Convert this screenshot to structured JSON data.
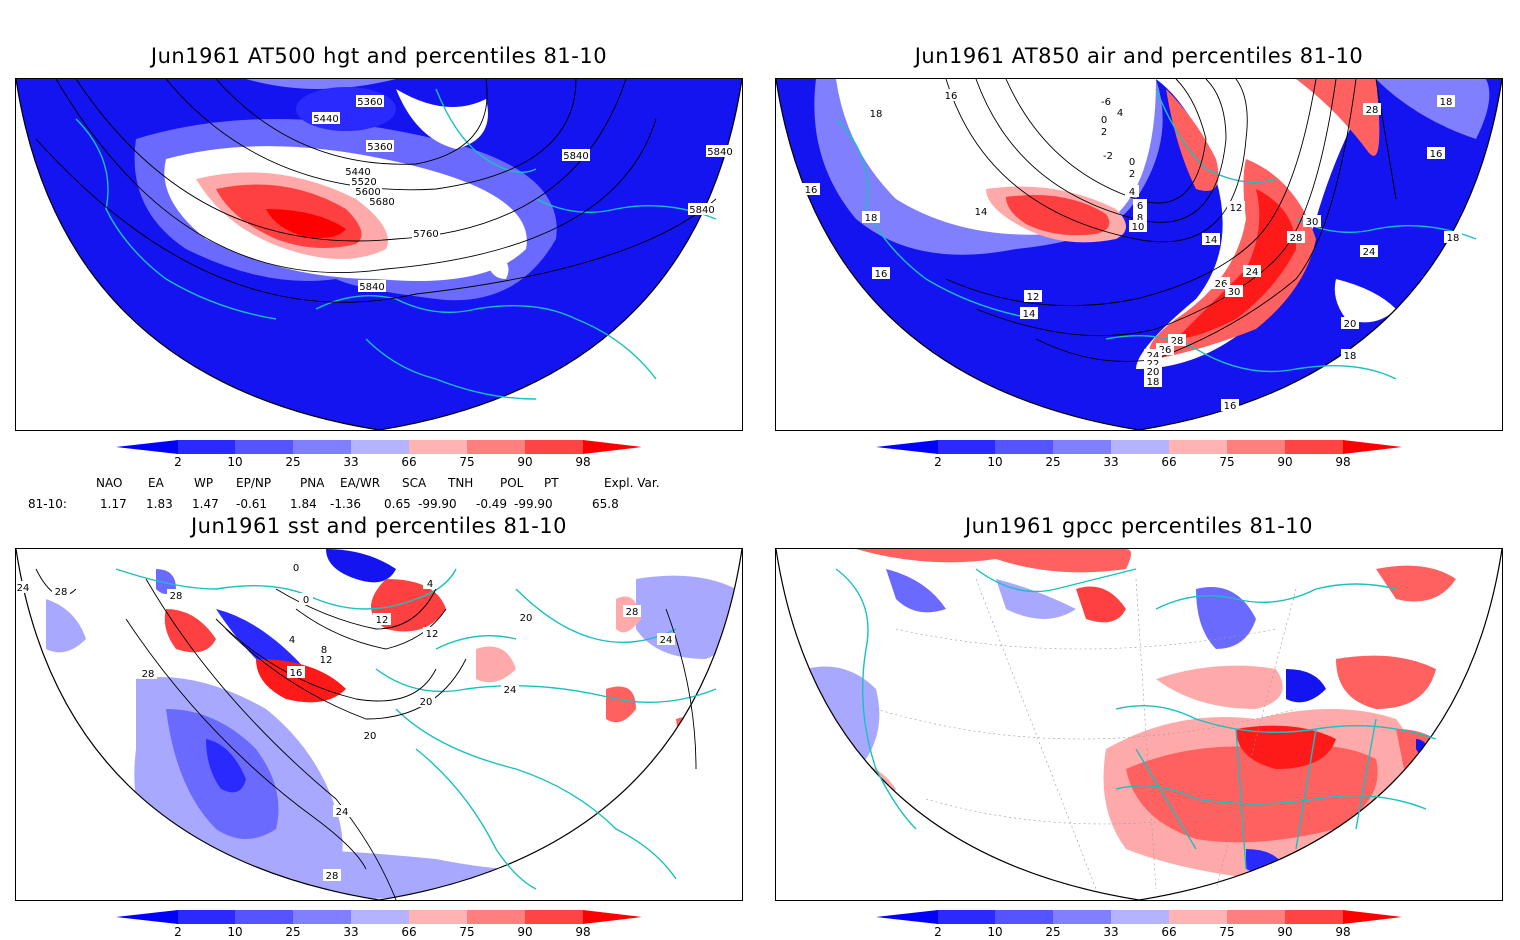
{
  "panels": [
    {
      "id": "at500",
      "title": "Jun1961 AT500 hgt and percentiles 81-10",
      "contour_labels": [
        "5360",
        "5440",
        "5360",
        "5440",
        "5520",
        "5600",
        "5680",
        "5760",
        "5840",
        "5840",
        "5840",
        "5840"
      ]
    },
    {
      "id": "at850",
      "title": "Jun1961 AT850 air and percentiles 81-10",
      "contour_labels": [
        "16",
        "18",
        "-6",
        "4",
        "0",
        "2",
        "-2",
        "0",
        "2",
        "4",
        "16",
        "18",
        "28",
        "18",
        "16",
        "14",
        "6",
        "8",
        "10",
        "12",
        "14",
        "30",
        "28",
        "24",
        "26",
        "30",
        "24",
        "12",
        "14",
        "28",
        "26",
        "24",
        "22",
        "20",
        "18",
        "16",
        "20",
        "18",
        "18",
        "16"
      ]
    },
    {
      "id": "sst",
      "title": "Jun1961 sst and percentiles 81-10",
      "contour_labels": [
        "24",
        "28",
        "28",
        "0",
        "0",
        "4",
        "12",
        "28",
        "4",
        "8",
        "12",
        "16",
        "12",
        "20",
        "28",
        "24",
        "20",
        "20",
        "24",
        "28",
        "24"
      ]
    },
    {
      "id": "gpcc",
      "title": "Jun1961 gpcc percentiles 81-10",
      "contour_labels": []
    }
  ],
  "colorbar": {
    "labels": [
      "2",
      "10",
      "25",
      "33",
      "66",
      "75",
      "90",
      "98"
    ],
    "colors": [
      "#0000ff",
      "#2a2aff",
      "#5555ff",
      "#8080ff",
      "#b3b3ff",
      "#ffffff",
      "#ffb3b3",
      "#ff7f7f",
      "#ff4444",
      "#ff1a1a",
      "#ff0000"
    ]
  },
  "indices": {
    "headers": [
      "NAO",
      "EA",
      "WP",
      "EP/NP",
      "PNA",
      "EA/WR",
      "SCA",
      "TNH",
      "POL",
      "PT",
      "Expl. Var."
    ],
    "row_label": "81-10:",
    "values": [
      "1.17",
      "1.83",
      "1.47",
      "-0.61",
      "1.84",
      "-1.36",
      "0.65",
      "-99.90",
      "-0.49",
      "-99.90",
      "65.8"
    ]
  },
  "colors": {
    "blue": "#1414f0",
    "mid_blue": "#6a6aff",
    "light_blue": "#a8a8ff",
    "red": "#ff1a1a",
    "mid_red": "#ff6060",
    "light_red": "#ffaaaa",
    "coast": "#19c0c0"
  }
}
